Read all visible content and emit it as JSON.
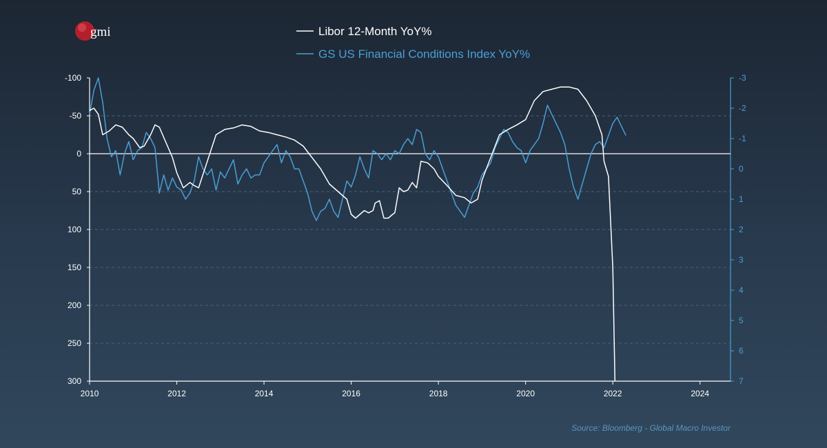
{
  "logo": {
    "text": "gmi"
  },
  "source": "Source: Bloomberg - Global Macro Investor",
  "chart_data": {
    "type": "line",
    "title": "",
    "legend_position": "top-center",
    "grid": "horizontal-dashed",
    "x_ticks": [
      "2010",
      "2012",
      "2014",
      "2016",
      "2018",
      "2020",
      "2022",
      "2024"
    ],
    "xlim": [
      2010,
      2024.7
    ],
    "y_left": {
      "ticks": [
        "-100",
        "-50",
        "0",
        "50",
        "100",
        "150",
        "200",
        "250",
        "300"
      ],
      "range": [
        -100,
        300
      ],
      "inverted": true
    },
    "y_right": {
      "ticks": [
        "-3",
        "-2",
        "-1",
        "0",
        "1",
        "2",
        "3",
        "4",
        "5",
        "6",
        "7"
      ],
      "range": [
        -3,
        7
      ],
      "inverted": true
    },
    "zero_line": 0,
    "colors": {
      "libor": "#ffffff",
      "fci": "#4a9fd6"
    },
    "series": [
      {
        "name": "Libor 12-Month YoY%",
        "axis": "left",
        "x": [
          2010.0,
          2010.1,
          2010.2,
          2010.3,
          2010.45,
          2010.6,
          2010.75,
          2010.9,
          2011.0,
          2011.15,
          2011.25,
          2011.4,
          2011.5,
          2011.6,
          2011.75,
          2011.9,
          2012.0,
          2012.15,
          2012.3,
          2012.4,
          2012.5,
          2012.7,
          2012.9,
          2013.1,
          2013.3,
          2013.5,
          2013.7,
          2013.9,
          2014.1,
          2014.3,
          2014.5,
          2014.7,
          2014.9,
          2015.1,
          2015.3,
          2015.5,
          2015.7,
          2015.8,
          2015.9,
          2016.0,
          2016.1,
          2016.3,
          2016.4,
          2016.5,
          2016.55,
          2016.65,
          2016.75,
          2016.85,
          2016.95,
          2017.0,
          2017.1,
          2017.2,
          2017.3,
          2017.4,
          2017.5,
          2017.6,
          2017.75,
          2017.9,
          2018.0,
          2018.2,
          2018.4,
          2018.6,
          2018.75,
          2018.9,
          2019.0,
          2019.2,
          2019.4,
          2019.6,
          2019.8,
          2020.0,
          2020.2,
          2020.4,
          2020.6,
          2020.8,
          2021.0,
          2021.2,
          2021.4,
          2021.6,
          2021.75,
          2021.8,
          2021.9,
          2022.0,
          2022.05
        ],
        "values": [
          -57,
          -60,
          -52,
          -25,
          -30,
          -38,
          -35,
          -25,
          -20,
          -8,
          -10,
          -25,
          -38,
          -35,
          -15,
          5,
          25,
          45,
          38,
          42,
          45,
          10,
          -25,
          -32,
          -34,
          -38,
          -36,
          -30,
          -28,
          -25,
          -22,
          -18,
          -10,
          5,
          20,
          40,
          50,
          55,
          60,
          80,
          85,
          75,
          78,
          75,
          65,
          62,
          85,
          85,
          80,
          78,
          45,
          50,
          48,
          38,
          45,
          10,
          12,
          20,
          30,
          42,
          55,
          58,
          65,
          60,
          35,
          5,
          -25,
          -32,
          -38,
          -45,
          -70,
          -82,
          -85,
          -88,
          -88,
          -85,
          -70,
          -50,
          -25,
          10,
          30,
          150,
          300
        ]
      },
      {
        "name": "GS US Financial Conditions Index YoY%",
        "axis": "right",
        "x": [
          2010.0,
          2010.1,
          2010.2,
          2010.3,
          2010.4,
          2010.5,
          2010.6,
          2010.7,
          2010.8,
          2010.9,
          2011.0,
          2011.1,
          2011.2,
          2011.3,
          2011.4,
          2011.5,
          2011.6,
          2011.7,
          2011.8,
          2011.9,
          2012.0,
          2012.1,
          2012.2,
          2012.3,
          2012.4,
          2012.5,
          2012.6,
          2012.7,
          2012.8,
          2012.9,
          2013.0,
          2013.1,
          2013.2,
          2013.3,
          2013.4,
          2013.5,
          2013.6,
          2013.7,
          2013.8,
          2013.9,
          2014.0,
          2014.1,
          2014.2,
          2014.3,
          2014.4,
          2014.5,
          2014.6,
          2014.7,
          2014.8,
          2014.9,
          2015.0,
          2015.1,
          2015.2,
          2015.3,
          2015.4,
          2015.5,
          2015.6,
          2015.7,
          2015.8,
          2015.9,
          2016.0,
          2016.1,
          2016.2,
          2016.3,
          2016.4,
          2016.5,
          2016.6,
          2016.7,
          2016.8,
          2016.9,
          2017.0,
          2017.1,
          2017.2,
          2017.3,
          2017.4,
          2017.5,
          2017.6,
          2017.7,
          2017.8,
          2017.9,
          2018.0,
          2018.1,
          2018.2,
          2018.3,
          2018.4,
          2018.5,
          2018.6,
          2018.7,
          2018.8,
          2018.9,
          2019.0,
          2019.1,
          2019.2,
          2019.3,
          2019.4,
          2019.5,
          2019.6,
          2019.7,
          2019.8,
          2019.9,
          2020.0,
          2020.1,
          2020.2,
          2020.3,
          2020.4,
          2020.5,
          2020.6,
          2020.7,
          2020.8,
          2020.9,
          2021.0,
          2021.1,
          2021.2,
          2021.3,
          2021.4,
          2021.5,
          2021.6,
          2021.7,
          2021.8,
          2021.9,
          2022.0,
          2022.1,
          2022.2,
          2022.3
        ],
        "values": [
          -1.8,
          -2.6,
          -3.0,
          -2.2,
          -1.0,
          -0.4,
          -0.6,
          0.2,
          -0.5,
          -0.9,
          -0.3,
          -0.6,
          -0.7,
          -1.2,
          -1.0,
          -0.7,
          0.8,
          0.2,
          0.7,
          0.3,
          0.6,
          0.7,
          1.0,
          0.8,
          0.4,
          -0.4,
          0.0,
          0.2,
          0.0,
          0.7,
          0.1,
          0.3,
          0.0,
          -0.3,
          0.5,
          0.2,
          0.0,
          0.3,
          0.2,
          0.2,
          -0.2,
          -0.4,
          -0.6,
          -0.8,
          -0.2,
          -0.6,
          -0.4,
          0.0,
          0.0,
          0.4,
          0.8,
          1.4,
          1.7,
          1.4,
          1.3,
          1.0,
          1.4,
          1.6,
          1.0,
          0.4,
          0.6,
          0.2,
          -0.4,
          0.0,
          0.3,
          -0.6,
          -0.5,
          -0.3,
          -0.5,
          -0.3,
          -0.6,
          -0.5,
          -0.8,
          -1.0,
          -0.8,
          -1.3,
          -1.2,
          -0.5,
          -0.3,
          -0.6,
          -0.4,
          0.0,
          0.4,
          0.8,
          1.2,
          1.4,
          1.6,
          1.2,
          0.8,
          0.6,
          0.2,
          0.0,
          -0.2,
          -0.7,
          -1.0,
          -1.3,
          -1.2,
          -0.9,
          -0.7,
          -0.6,
          -0.2,
          -0.6,
          -0.8,
          -1.0,
          -1.5,
          -2.1,
          -1.8,
          -1.5,
          -1.2,
          -0.8,
          0.0,
          0.6,
          1.0,
          0.5,
          0.0,
          -0.5,
          -0.8,
          -0.9,
          -0.7,
          -1.1,
          -1.5,
          -1.7,
          -1.4,
          -1.1
        ]
      }
    ]
  }
}
